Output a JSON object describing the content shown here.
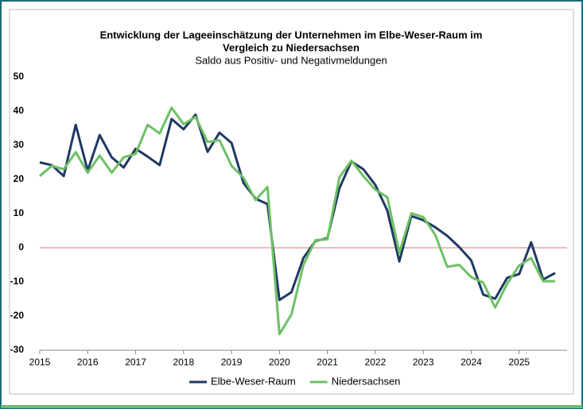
{
  "chart_data": {
    "type": "line",
    "title": [
      "Entwicklung der Lageeinschätzung der Unternehmen im Elbe-Weser-Raum im",
      "Vergleich zu Niedersachsen"
    ],
    "subtitle": "Saldo aus Positiv- und Negativmeldungen",
    "x": [
      2015,
      2015.25,
      2015.5,
      2015.75,
      2016,
      2016.25,
      2016.5,
      2016.75,
      2017,
      2017.25,
      2017.5,
      2017.75,
      2018,
      2018.25,
      2018.5,
      2018.75,
      2019,
      2019.25,
      2019.5,
      2019.75,
      2020,
      2020.25,
      2020.5,
      2020.75,
      2021,
      2021.25,
      2021.5,
      2021.75,
      2022,
      2022.25,
      2022.5,
      2022.75,
      2023,
      2023.25,
      2023.5,
      2023.75,
      2024,
      2024.25,
      2024.5,
      2024.75,
      2025,
      2025.25,
      2025.5,
      2025.75
    ],
    "series": [
      {
        "name": "Elbe-Weser-Raum",
        "color": "#1f3864",
        "values": [
          25,
          24.2,
          21,
          36,
          22.6,
          33,
          26.5,
          23.5,
          29,
          26.7,
          24.2,
          37.7,
          34.7,
          39,
          28.1,
          33.7,
          30.7,
          19,
          14.4,
          12.8,
          -15.3,
          -13,
          -3,
          2,
          2.8,
          17.4,
          25.3,
          23,
          18.4,
          10.9,
          -4,
          9.3,
          8.1,
          6,
          3.5,
          0.2,
          -3.7,
          -13.7,
          -14.9,
          -8.8,
          -7.7,
          1.6,
          -9.3,
          -7.4
        ]
      },
      {
        "name": "Niedersachsen",
        "color": "#6cc064",
        "values": [
          21,
          24,
          23,
          28,
          22,
          27,
          22,
          26.5,
          27.5,
          36,
          33.5,
          41,
          36.2,
          38.3,
          31,
          31.5,
          24,
          20.5,
          14,
          17.8,
          -25.3,
          -19.5,
          -5,
          2.2,
          2.5,
          20.6,
          25.5,
          21,
          17,
          14.8,
          -1.5,
          10.1,
          9,
          3.8,
          -5.6,
          -5,
          -8.6,
          -10.2,
          -17.5,
          -10.5,
          -5.2,
          -3,
          -9.8,
          -9.8
        ]
      }
    ],
    "xlim": [
      2015,
      2026
    ],
    "xticks": [
      2015,
      2016,
      2017,
      2018,
      2019,
      2020,
      2021,
      2022,
      2023,
      2024,
      2025
    ],
    "ylim": [
      -30,
      50
    ],
    "yticks": [
      -30,
      -20,
      -10,
      0,
      10,
      20,
      30,
      40,
      50
    ],
    "zero_line_color": "#e8736c",
    "legend": "bottom"
  }
}
